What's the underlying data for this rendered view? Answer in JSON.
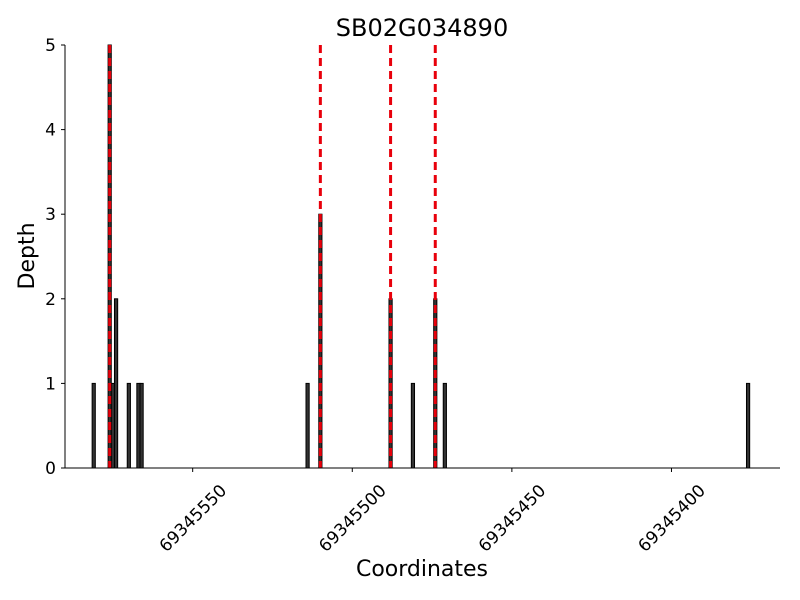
{
  "chart_data": {
    "type": "bar",
    "title": "SB02G034890",
    "x_label": "Coordinates",
    "y_label": "Depth",
    "x": [
      69345581,
      69345576,
      69345575,
      69345574,
      69345570,
      69345567,
      69345566,
      69345514,
      69345510,
      69345488,
      69345481,
      69345474,
      69345471,
      69345376
    ],
    "values": [
      1,
      5,
      1,
      2,
      1,
      1,
      1,
      1,
      3,
      2,
      1,
      2,
      1,
      1
    ],
    "color": "#333333",
    "vlines": [
      69345576,
      69345510,
      69345488,
      69345474
    ],
    "vline_color": "#e8000b",
    "xlim": [
      69345590,
      69345366
    ],
    "xticks": [
      69345550,
      69345500,
      69345450,
      69345400
    ],
    "ylim": [
      0,
      5
    ],
    "yticks": [
      0,
      1,
      2,
      3,
      4,
      5
    ],
    "grid": false
  }
}
